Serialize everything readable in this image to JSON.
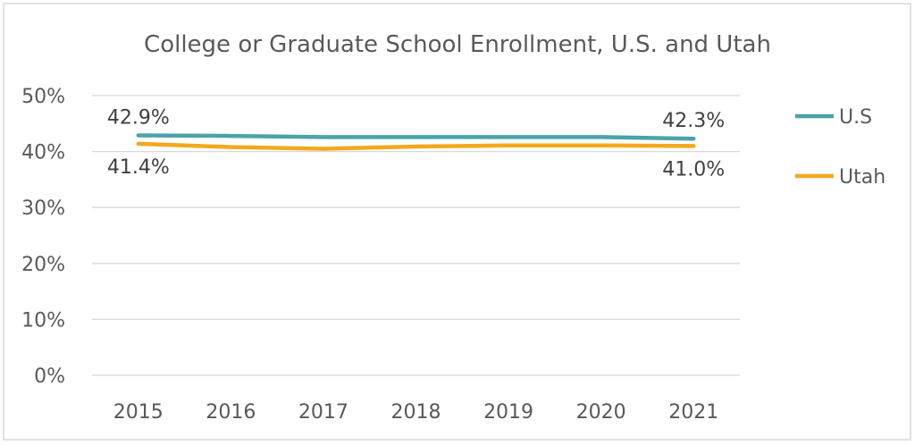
{
  "chart_data": {
    "type": "line",
    "title": "College or Graduate School Enrollment, U.S. and Utah",
    "xlabel": "",
    "ylabel": "",
    "x": [
      "2015",
      "2016",
      "2017",
      "2018",
      "2019",
      "2020",
      "2021"
    ],
    "y_ticks": [
      "0%",
      "10%",
      "20%",
      "30%",
      "40%",
      "50%"
    ],
    "ylim": [
      0,
      50
    ],
    "grid": true,
    "legend_position": "right",
    "series": [
      {
        "name": "U.S",
        "color": "#4aa3a8",
        "values": [
          42.9,
          42.8,
          42.6,
          42.6,
          42.6,
          42.6,
          42.3
        ],
        "data_labels": [
          {
            "index": 0,
            "text": "42.9%"
          },
          {
            "index": 6,
            "text": "42.3%"
          }
        ]
      },
      {
        "name": "Utah",
        "color": "#f5a81c",
        "values": [
          41.4,
          40.8,
          40.5,
          40.9,
          41.1,
          41.1,
          41.0
        ],
        "data_labels": [
          {
            "index": 0,
            "text": "41.4%"
          },
          {
            "index": 6,
            "text": "41.0%"
          }
        ]
      }
    ]
  }
}
